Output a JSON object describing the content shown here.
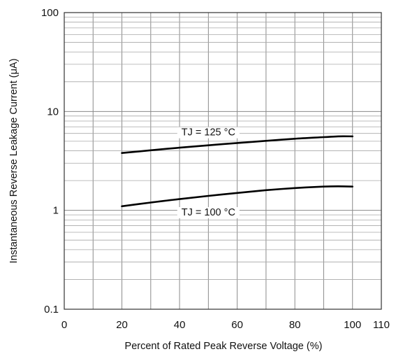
{
  "chart_data": {
    "type": "line",
    "title": "",
    "xlabel": "Percent of Rated Peak Reverse Voltage (%)",
    "ylabel": "Instantaneous Reverse Leakage Current (μA)",
    "xlim": [
      0,
      110
    ],
    "ylim": [
      0.1,
      100
    ],
    "yscale": "log",
    "grid": true,
    "x_ticks": [
      {
        "value": 0,
        "label": "0"
      },
      {
        "value": 20,
        "label": "20"
      },
      {
        "value": 40,
        "label": "40"
      },
      {
        "value": 60,
        "label": "60"
      },
      {
        "value": 80,
        "label": "80"
      },
      {
        "value": 100,
        "label": "100"
      },
      {
        "value": 110,
        "label": "110"
      }
    ],
    "y_ticks": [
      {
        "value": 0.1,
        "label": "0.1"
      },
      {
        "value": 1,
        "label": "1"
      },
      {
        "value": 10,
        "label": "10"
      },
      {
        "value": 100,
        "label": "100"
      }
    ],
    "series": [
      {
        "name": "TJ = 125 °C",
        "x": [
          20,
          30,
          40,
          50,
          60,
          70,
          80,
          90,
          95,
          100
        ],
        "y": [
          3.8,
          4.05,
          4.3,
          4.55,
          4.8,
          5.05,
          5.3,
          5.5,
          5.6,
          5.6
        ]
      },
      {
        "name": "TJ = 100 °C",
        "x": [
          20,
          30,
          40,
          50,
          60,
          70,
          80,
          90,
          95,
          100
        ],
        "y": [
          1.1,
          1.2,
          1.3,
          1.4,
          1.5,
          1.6,
          1.68,
          1.74,
          1.75,
          1.74
        ]
      }
    ]
  }
}
